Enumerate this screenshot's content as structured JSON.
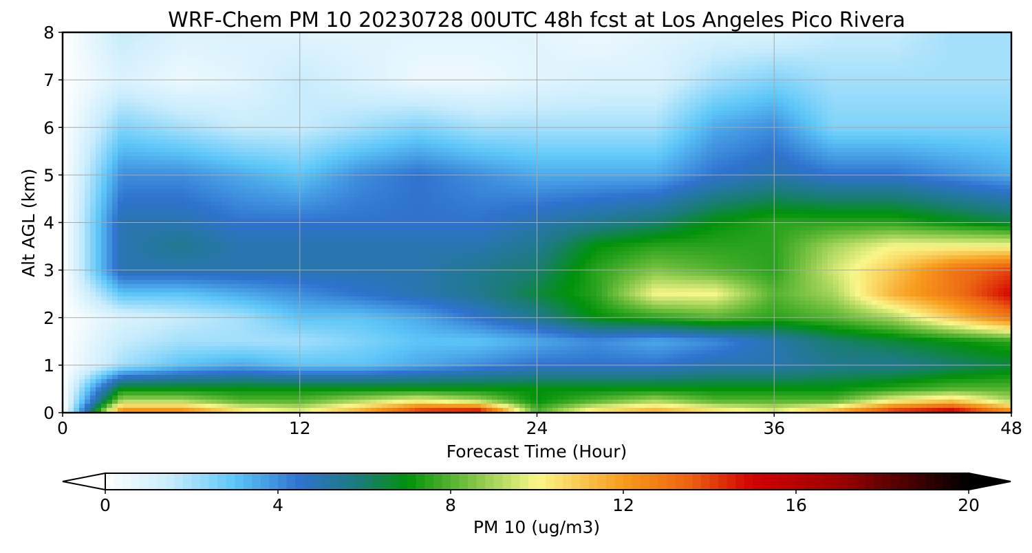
{
  "chart_data": {
    "type": "heatmap",
    "title": "WRF-Chem PM 10  20230728 00UTC 48h fcst at Los Angeles Pico Rivera",
    "xlabel": "Forecast Time (Hour)",
    "ylabel": "Alt AGL (km)",
    "xlim": [
      0,
      48
    ],
    "ylim": [
      0,
      8
    ],
    "xticks": [
      0,
      12,
      24,
      36,
      48
    ],
    "yticks": [
      0,
      1,
      2,
      3,
      4,
      5,
      6,
      7,
      8
    ],
    "grid": true,
    "x_hours": [
      0,
      3,
      6,
      9,
      12,
      15,
      18,
      21,
      24,
      27,
      30,
      33,
      36,
      39,
      42,
      45,
      48
    ],
    "z_km": [
      0,
      0.25,
      0.5,
      1,
      1.5,
      2,
      2.5,
      3,
      3.5,
      4,
      5,
      6,
      7,
      8
    ],
    "pm10_ugm3": [
      [
        0,
        13,
        13,
        11,
        10,
        12,
        15,
        16,
        8,
        11,
        12,
        11,
        10,
        12,
        15,
        16,
        13
      ],
      [
        0,
        9,
        9,
        8,
        8,
        9,
        10,
        9,
        7,
        8,
        9,
        8,
        8,
        8,
        10,
        11,
        9
      ],
      [
        0,
        7,
        7,
        7,
        7,
        7,
        7,
        7,
        7,
        7,
        7,
        7,
        7,
        7,
        7.5,
        8,
        8
      ],
      [
        0,
        2,
        3,
        3.5,
        3,
        3,
        3.5,
        4,
        4.5,
        4.5,
        4.5,
        5,
        5,
        5.5,
        5.5,
        6,
        6.5
      ],
      [
        0,
        1.5,
        2,
        2,
        2,
        2.5,
        3,
        3,
        3.5,
        4,
        3.5,
        4,
        5,
        6,
        6.5,
        7,
        7.5
      ],
      [
        0,
        1,
        1.5,
        2,
        3,
        3,
        3.5,
        4.5,
        5.5,
        7,
        7.5,
        8,
        7.5,
        8,
        9,
        11,
        13
      ],
      [
        0,
        3,
        3,
        3.5,
        4,
        4.5,
        5,
        5.5,
        6.5,
        7.5,
        10,
        10,
        8,
        9,
        11.5,
        13,
        15
      ],
      [
        0,
        5,
        5,
        5,
        5,
        5,
        5,
        5.5,
        6,
        7.5,
        8.5,
        8,
        7.5,
        9.5,
        11,
        13,
        14
      ],
      [
        0,
        5,
        5.5,
        5,
        5,
        5,
        5,
        5,
        5.5,
        7,
        7.5,
        7.5,
        7.5,
        9,
        10,
        10,
        10
      ],
      [
        0,
        5,
        5,
        4.5,
        4.5,
        4.5,
        4.5,
        4.5,
        5,
        5.5,
        6,
        7,
        7.5,
        7.5,
        7.5,
        7,
        6.5
      ],
      [
        0,
        4,
        4,
        3.5,
        3,
        4,
        4.5,
        4,
        3.5,
        3.5,
        3.5,
        4.5,
        5,
        4.5,
        4.5,
        4,
        3.5
      ],
      [
        0,
        2.5,
        2,
        1.5,
        1.5,
        2,
        2.5,
        2,
        2,
        2,
        2,
        3.5,
        4,
        2.5,
        2.5,
        2.5,
        2.5
      ],
      [
        0,
        1,
        0.5,
        0.8,
        1.5,
        1,
        0.5,
        0.5,
        0.8,
        1,
        1,
        2,
        2.5,
        2,
        2,
        2,
        2
      ],
      [
        0,
        1.5,
        1,
        1,
        0.8,
        0.8,
        0.8,
        0.8,
        0.8,
        0.5,
        0.8,
        1,
        1,
        1.5,
        1.5,
        2,
        2
      ]
    ],
    "colorbar": {
      "label": "PM 10  (ug/m3)",
      "ticks": [
        0,
        4,
        8,
        12,
        16,
        20
      ],
      "range": [
        0,
        20
      ],
      "extend": "both",
      "stops": [
        {
          "v": 0,
          "c": "#ffffff"
        },
        {
          "v": 1.5,
          "c": "#c8ecfc"
        },
        {
          "v": 3,
          "c": "#5cc6f8"
        },
        {
          "v": 4.5,
          "c": "#2f72cf"
        },
        {
          "v": 6,
          "c": "#197d70"
        },
        {
          "v": 7,
          "c": "#00920a"
        },
        {
          "v": 8.5,
          "c": "#7ec444"
        },
        {
          "v": 10,
          "c": "#f9f78a"
        },
        {
          "v": 12,
          "c": "#f89b1c"
        },
        {
          "v": 13.5,
          "c": "#ec6412"
        },
        {
          "v": 15,
          "c": "#d20000"
        },
        {
          "v": 17,
          "c": "#9c0000"
        },
        {
          "v": 20,
          "c": "#000000"
        }
      ]
    }
  }
}
